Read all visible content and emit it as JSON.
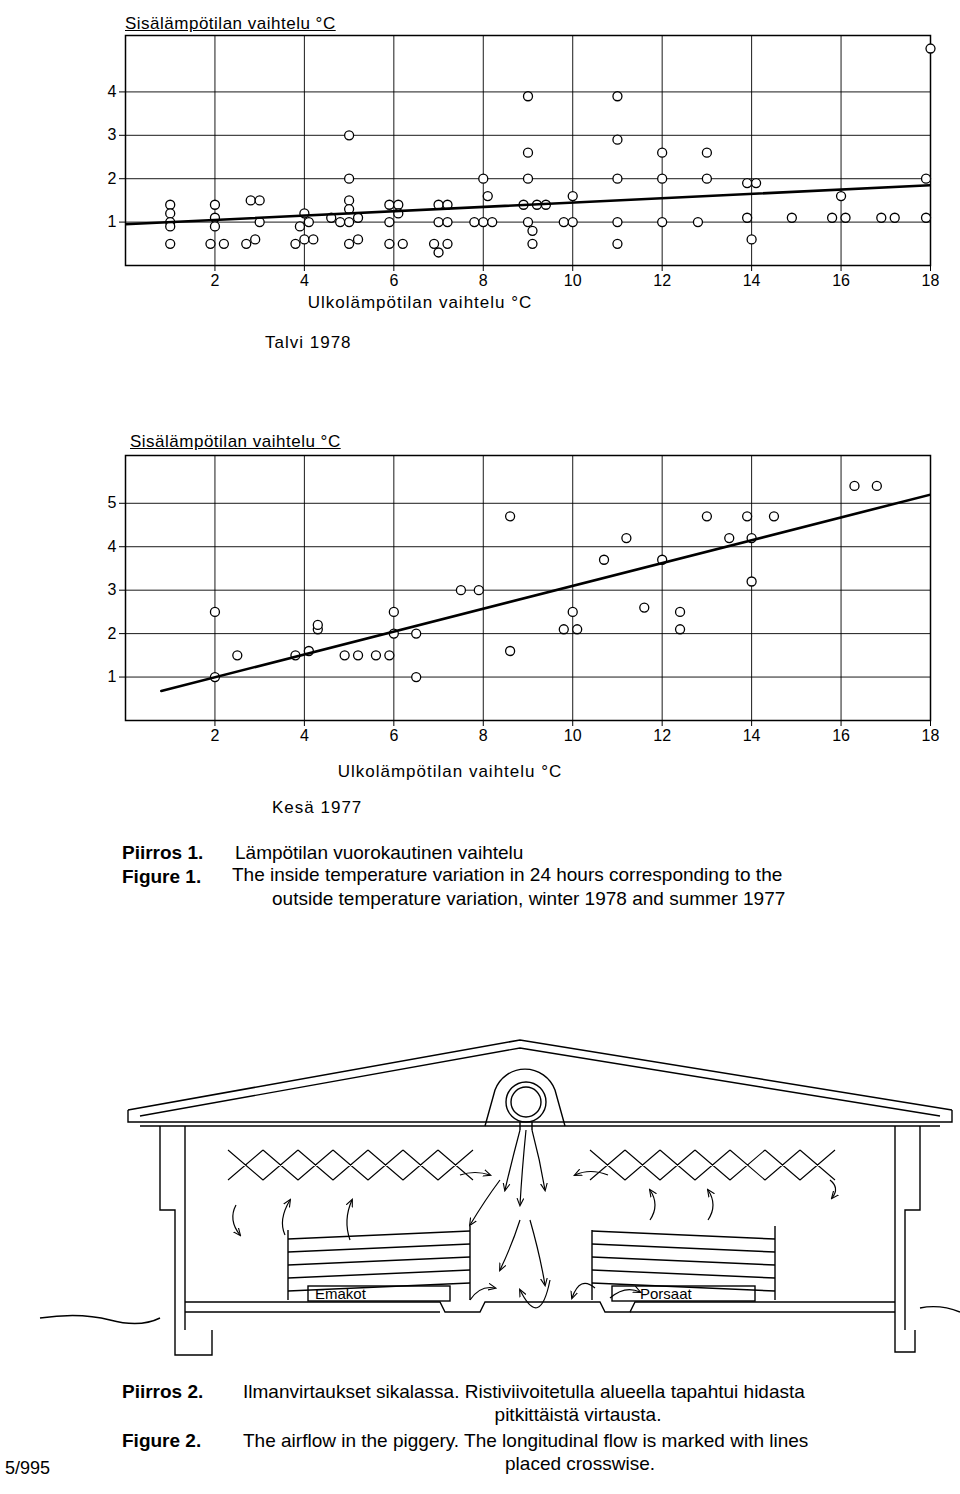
{
  "chart_data": [
    {
      "type": "scatter",
      "title": "Talvi 1978",
      "ylabel": "Sisälämpötilan vaihtelu °C",
      "xlabel": "Ulkolämpötilan vaihtelu °C",
      "xlim": [
        0,
        18
      ],
      "ylim": [
        0,
        5.3
      ],
      "xticks": [
        2,
        4,
        6,
        8,
        10,
        12,
        14,
        16,
        18
      ],
      "yticks": [
        1,
        2,
        3,
        4
      ],
      "grid": true,
      "series": [
        {
          "type": "scatter",
          "marker": "circle",
          "color": "#000000",
          "x": [
            1.0,
            1.0,
            1.0,
            1.0,
            1.0,
            2.0,
            2.0,
            2.0,
            1.9,
            2.2,
            2.8,
            3.0,
            3.0,
            2.9,
            2.7,
            4.0,
            4.1,
            3.9,
            4.0,
            3.8,
            4.2,
            4.6,
            4.8,
            5.0,
            5.2,
            5.0,
            5.0,
            5.0,
            5.0,
            5.2,
            5.0,
            5.9,
            6.1,
            6.1,
            5.9,
            5.9,
            6.2,
            7.0,
            7.2,
            7.0,
            7.2,
            6.9,
            7.2,
            7.0,
            8.0,
            8.1,
            8.0,
            7.8,
            8.2,
            8.9,
            9.2,
            9.0,
            9.1,
            9.1,
            9.4,
            9.0,
            9.0,
            9.0,
            10.0,
            10.0,
            9.8,
            11.0,
            11.0,
            11.0,
            11.0,
            11.0,
            12.0,
            12.0,
            12.0,
            13.0,
            13.0,
            12.8,
            13.9,
            14.1,
            13.9,
            14.0,
            14.9,
            15.8,
            16.1,
            16.0,
            16.9,
            17.2,
            17.9,
            17.9,
            18.0
          ],
          "values": [
            1.4,
            1.2,
            1.0,
            0.9,
            0.5,
            1.4,
            1.1,
            0.9,
            0.5,
            0.5,
            1.5,
            1.5,
            1.0,
            0.6,
            0.5,
            1.2,
            1.0,
            0.9,
            0.6,
            0.5,
            0.6,
            1.1,
            1.0,
            0.5,
            0.6,
            3.0,
            2.0,
            1.5,
            1.3,
            1.1,
            1.0,
            1.4,
            1.4,
            1.2,
            1.0,
            0.5,
            0.5,
            1.4,
            1.4,
            1.0,
            1.0,
            0.5,
            0.5,
            0.3,
            2.0,
            1.6,
            1.0,
            1.0,
            1.0,
            1.4,
            1.4,
            1.0,
            0.8,
            0.5,
            1.4,
            3.9,
            2.6,
            2.0,
            1.6,
            1.0,
            1.0,
            3.9,
            2.9,
            2.0,
            1.0,
            0.5,
            2.6,
            2.0,
            1.0,
            2.6,
            2.0,
            1.0,
            1.9,
            1.9,
            1.1,
            0.6,
            1.1,
            1.1,
            1.1,
            1.6,
            1.1,
            1.1,
            2.0,
            1.1,
            5.0
          ]
        },
        {
          "type": "line",
          "line_style": "solid",
          "color": "#000000",
          "x": [
            0,
            18
          ],
          "values": [
            0.95,
            1.85
          ]
        }
      ]
    },
    {
      "type": "scatter",
      "title": "Kesä 1977",
      "ylabel": "Sisälämpötilan vaihtelu °C",
      "xlabel": "Ulkolämpötilan vaihtelu °C",
      "xlim": [
        0,
        18
      ],
      "ylim": [
        0,
        6.1
      ],
      "xticks": [
        2,
        4,
        6,
        8,
        10,
        12,
        14,
        16,
        18
      ],
      "yticks": [
        1,
        2,
        3,
        4,
        5
      ],
      "grid": true,
      "series": [
        {
          "type": "scatter",
          "marker": "circle",
          "color": "#000000",
          "x": [
            2.0,
            2.0,
            2.5,
            3.8,
            4.1,
            4.3,
            4.3,
            4.9,
            5.2,
            5.6,
            5.9,
            6.0,
            6.0,
            6.5,
            6.5,
            7.5,
            7.9,
            8.6,
            8.6,
            10.0,
            9.8,
            10.1,
            10.7,
            11.2,
            11.6,
            12.4,
            12.4,
            12.0,
            13.0,
            13.5,
            13.9,
            14.0,
            14.0,
            14.5,
            16.3,
            16.8
          ],
          "values": [
            2.5,
            1.0,
            1.5,
            1.5,
            1.6,
            2.1,
            2.2,
            1.5,
            1.5,
            1.5,
            1.5,
            2.5,
            2.0,
            1.0,
            2.0,
            3.0,
            3.0,
            1.6,
            4.7,
            2.5,
            2.1,
            2.1,
            3.7,
            4.2,
            2.6,
            2.5,
            2.1,
            3.7,
            4.7,
            4.2,
            4.7,
            4.2,
            3.2,
            4.7,
            5.4,
            5.4
          ]
        },
        {
          "type": "line",
          "line_style": "solid",
          "color": "#000000",
          "x": [
            0.8,
            18
          ],
          "values": [
            0.68,
            5.2
          ]
        }
      ]
    }
  ],
  "figure_1_caption": [
    {
      "label": "Piirros 1.",
      "lines": [
        "Lämpötilan vuorokautinen vaihtelu"
      ]
    },
    {
      "label": "Figure 1.",
      "lines": [
        "The inside temperature variation in 24 hours corresponding to the",
        "outside temperature variation, winter 1978 and summer 1977"
      ]
    }
  ],
  "diagram": {
    "labels": [
      "Emakot",
      "Porsaat"
    ]
  },
  "figure_2_caption": [
    {
      "label": "Piirros 2.",
      "lines": [
        "Ilmanvirtaukset sikalassa. Ristiviivoitetulla alueella tapahtui hidasta",
        "pitkittäistä virtausta."
      ]
    },
    {
      "label": "Figure 2.",
      "lines": [
        "The airflow in the piggery. The longitudinal flow is marked with lines",
        "placed crosswise."
      ]
    }
  ],
  "page_number": "5/995"
}
